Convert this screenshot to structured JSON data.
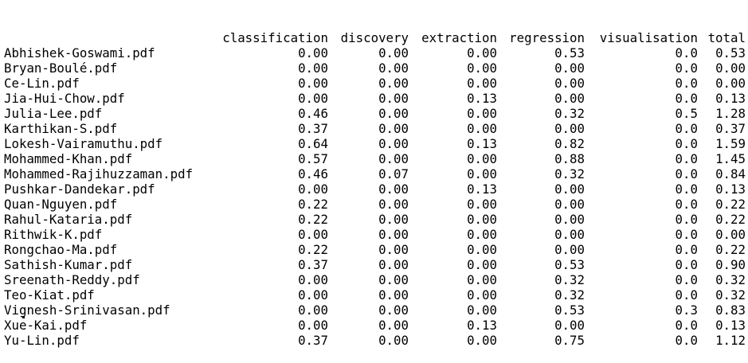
{
  "columns": {
    "classification": "classification",
    "discovery": "discovery",
    "extraction": "extraction",
    "regression": "regression",
    "visualisation": "visualisation",
    "total": "total"
  },
  "rows": [
    {
      "name": "Abhishek-Goswami.pdf",
      "classification": "0.00",
      "discovery": "0.00",
      "extraction": "0.00",
      "regression": "0.53",
      "visualisation": "0.0",
      "total": "0.53"
    },
    {
      "name": "Bryan-Boulé.pdf",
      "classification": "0.00",
      "discovery": "0.00",
      "extraction": "0.00",
      "regression": "0.00",
      "visualisation": "0.0",
      "total": "0.00"
    },
    {
      "name": "Ce-Lin.pdf",
      "classification": "0.00",
      "discovery": "0.00",
      "extraction": "0.00",
      "regression": "0.00",
      "visualisation": "0.0",
      "total": "0.00"
    },
    {
      "name": "Jia-Hui-Chow.pdf",
      "classification": "0.00",
      "discovery": "0.00",
      "extraction": "0.13",
      "regression": "0.00",
      "visualisation": "0.0",
      "total": "0.13"
    },
    {
      "name": "Julia-Lee.pdf",
      "classification": "0.46",
      "discovery": "0.00",
      "extraction": "0.00",
      "regression": "0.32",
      "visualisation": "0.5",
      "total": "1.28"
    },
    {
      "name": "Karthikan-S.pdf",
      "classification": "0.37",
      "discovery": "0.00",
      "extraction": "0.00",
      "regression": "0.00",
      "visualisation": "0.0",
      "total": "0.37"
    },
    {
      "name": "Lokesh-Vairamuthu.pdf",
      "classification": "0.64",
      "discovery": "0.00",
      "extraction": "0.13",
      "regression": "0.82",
      "visualisation": "0.0",
      "total": "1.59"
    },
    {
      "name": "Mohammed-Khan.pdf",
      "classification": "0.57",
      "discovery": "0.00",
      "extraction": "0.00",
      "regression": "0.88",
      "visualisation": "0.0",
      "total": "1.45"
    },
    {
      "name": "Mohammed-Rajihuzzaman.pdf",
      "classification": "0.46",
      "discovery": "0.07",
      "extraction": "0.00",
      "regression": "0.32",
      "visualisation": "0.0",
      "total": "0.84"
    },
    {
      "name": "Pushkar-Dandekar.pdf",
      "classification": "0.00",
      "discovery": "0.00",
      "extraction": "0.13",
      "regression": "0.00",
      "visualisation": "0.0",
      "total": "0.13"
    },
    {
      "name": "Quan-Nguyen.pdf",
      "classification": "0.22",
      "discovery": "0.00",
      "extraction": "0.00",
      "regression": "0.00",
      "visualisation": "0.0",
      "total": "0.22"
    },
    {
      "name": "Rahul-Kataria.pdf",
      "classification": "0.22",
      "discovery": "0.00",
      "extraction": "0.00",
      "regression": "0.00",
      "visualisation": "0.0",
      "total": "0.22"
    },
    {
      "name": "Rithwik-K.pdf",
      "classification": "0.00",
      "discovery": "0.00",
      "extraction": "0.00",
      "regression": "0.00",
      "visualisation": "0.0",
      "total": "0.00"
    },
    {
      "name": "Rongchao-Ma.pdf",
      "classification": "0.22",
      "discovery": "0.00",
      "extraction": "0.00",
      "regression": "0.00",
      "visualisation": "0.0",
      "total": "0.22"
    },
    {
      "name": "Sathish-Kumar.pdf",
      "classification": "0.37",
      "discovery": "0.00",
      "extraction": "0.00",
      "regression": "0.53",
      "visualisation": "0.0",
      "total": "0.90"
    },
    {
      "name": "Sreenath-Reddy.pdf",
      "classification": "0.00",
      "discovery": "0.00",
      "extraction": "0.00",
      "regression": "0.32",
      "visualisation": "0.0",
      "total": "0.32"
    },
    {
      "name": "Teo-Kiat.pdf",
      "classification": "0.00",
      "discovery": "0.00",
      "extraction": "0.00",
      "regression": "0.32",
      "visualisation": "0.0",
      "total": "0.32"
    },
    {
      "name": "Vignesh-Srinivasan.pdf",
      "classification": "0.00",
      "discovery": "0.00",
      "extraction": "0.00",
      "regression": "0.53",
      "visualisation": "0.3",
      "total": "0.83"
    },
    {
      "name": "Xue-Kai.pdf",
      "classification": "0.00",
      "discovery": "0.00",
      "extraction": "0.13",
      "regression": "0.00",
      "visualisation": "0.0",
      "total": "0.13"
    },
    {
      "name": "Yu-Lin.pdf",
      "classification": "0.37",
      "discovery": "0.00",
      "extraction": "0.00",
      "regression": "0.75",
      "visualisation": "0.0",
      "total": "1.12"
    }
  ]
}
